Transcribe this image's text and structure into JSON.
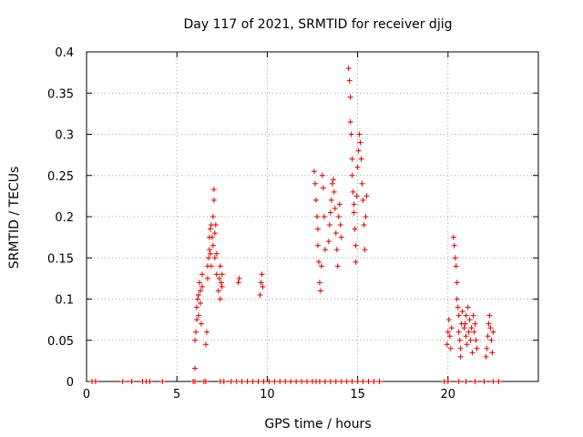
{
  "chart_data": {
    "type": "scatter",
    "title": "Day 117 of 2021, SRMTID for receiver djig",
    "xlabel": "GPS time / hours",
    "ylabel": "SRMTID / TECUs",
    "xlim": [
      0,
      25
    ],
    "ylim": [
      0,
      0.4
    ],
    "xticks": [
      0,
      5,
      10,
      15,
      20
    ],
    "xtick_labels": [
      "0",
      "5",
      "10",
      "15",
      "20"
    ],
    "yticks": [
      0,
      0.05,
      0.1,
      0.15,
      0.2,
      0.25,
      0.3,
      0.35,
      0.4
    ],
    "ytick_labels": [
      "0",
      "0.05",
      "0.1",
      "0.15",
      "0.2",
      "0.25",
      "0.3",
      "0.35",
      "0.4"
    ],
    "grid": true,
    "marker": "+",
    "color": "#dd0000",
    "series": [
      {
        "name": "SRMTID",
        "points": [
          [
            0.3,
            0
          ],
          [
            0.5,
            0
          ],
          [
            2.0,
            0
          ],
          [
            2.5,
            0
          ],
          [
            3.1,
            0
          ],
          [
            3.3,
            0
          ],
          [
            3.5,
            0
          ],
          [
            4.2,
            0
          ],
          [
            5.9,
            0
          ],
          [
            6.0,
            0
          ],
          [
            6.5,
            0
          ],
          [
            6.6,
            0
          ],
          [
            7.4,
            0
          ],
          [
            7.6,
            0
          ],
          [
            8.0,
            0
          ],
          [
            8.3,
            0
          ],
          [
            8.6,
            0
          ],
          [
            8.9,
            0
          ],
          [
            9.2,
            0
          ],
          [
            9.5,
            0
          ],
          [
            9.8,
            0
          ],
          [
            10.1,
            0
          ],
          [
            10.4,
            0
          ],
          [
            10.7,
            0
          ],
          [
            11.0,
            0
          ],
          [
            11.3,
            0
          ],
          [
            11.6,
            0
          ],
          [
            11.9,
            0
          ],
          [
            12.2,
            0
          ],
          [
            12.5,
            0
          ],
          [
            12.7,
            0
          ],
          [
            12.9,
            0
          ],
          [
            13.2,
            0
          ],
          [
            13.5,
            0
          ],
          [
            13.8,
            0
          ],
          [
            14.1,
            0
          ],
          [
            14.4,
            0
          ],
          [
            14.7,
            0
          ],
          [
            15.0,
            0
          ],
          [
            15.3,
            0
          ],
          [
            15.6,
            0
          ],
          [
            15.9,
            0
          ],
          [
            16.2,
            0
          ],
          [
            19.8,
            0
          ],
          [
            20.0,
            0
          ],
          [
            20.6,
            0
          ],
          [
            21.0,
            0
          ],
          [
            21.5,
            0
          ],
          [
            22.0,
            0
          ],
          [
            22.5,
            0
          ],
          [
            22.8,
            0
          ],
          [
            6.0,
            0.016
          ],
          [
            6.0,
            0.05
          ],
          [
            6.05,
            0.06
          ],
          [
            6.1,
            0.075
          ],
          [
            6.1,
            0.09
          ],
          [
            6.15,
            0.1
          ],
          [
            6.2,
            0.105
          ],
          [
            6.2,
            0.08
          ],
          [
            6.25,
            0.12
          ],
          [
            6.3,
            0.095
          ],
          [
            6.3,
            0.11
          ],
          [
            6.35,
            0.07
          ],
          [
            6.4,
            0.115
          ],
          [
            6.4,
            0.13
          ],
          [
            6.6,
            0.045
          ],
          [
            6.65,
            0.06
          ],
          [
            6.7,
            0.125
          ],
          [
            6.7,
            0.14
          ],
          [
            6.75,
            0.15
          ],
          [
            6.8,
            0.16
          ],
          [
            6.8,
            0.175
          ],
          [
            6.85,
            0.185
          ],
          [
            6.85,
            0.155
          ],
          [
            6.9,
            0.19
          ],
          [
            6.9,
            0.14
          ],
          [
            6.95,
            0.175
          ],
          [
            7.0,
            0.2
          ],
          [
            7.0,
            0.165
          ],
          [
            7.05,
            0.22
          ],
          [
            7.05,
            0.233
          ],
          [
            7.1,
            0.18
          ],
          [
            7.1,
            0.15
          ],
          [
            7.15,
            0.19
          ],
          [
            7.2,
            0.13
          ],
          [
            7.2,
            0.155
          ],
          [
            7.3,
            0.11
          ],
          [
            7.35,
            0.125
          ],
          [
            7.4,
            0.14
          ],
          [
            7.4,
            0.1
          ],
          [
            7.45,
            0.12
          ],
          [
            7.5,
            0.13
          ],
          [
            7.5,
            0.115
          ],
          [
            8.4,
            0.12
          ],
          [
            8.45,
            0.125
          ],
          [
            9.6,
            0.105
          ],
          [
            9.65,
            0.12
          ],
          [
            9.7,
            0.13
          ],
          [
            9.75,
            0.115
          ],
          [
            12.6,
            0.255
          ],
          [
            12.65,
            0.24
          ],
          [
            12.7,
            0.22
          ],
          [
            12.75,
            0.2
          ],
          [
            12.8,
            0.185
          ],
          [
            12.8,
            0.165
          ],
          [
            12.85,
            0.145
          ],
          [
            12.9,
            0.12
          ],
          [
            12.95,
            0.11
          ],
          [
            13.0,
            0.14
          ],
          [
            13.05,
            0.25
          ],
          [
            13.1,
            0.235
          ],
          [
            13.15,
            0.2
          ],
          [
            13.2,
            0.16
          ],
          [
            13.4,
            0.17
          ],
          [
            13.45,
            0.19
          ],
          [
            13.5,
            0.205
          ],
          [
            13.55,
            0.22
          ],
          [
            13.6,
            0.24
          ],
          [
            13.65,
            0.245
          ],
          [
            13.7,
            0.23
          ],
          [
            13.75,
            0.21
          ],
          [
            13.8,
            0.18
          ],
          [
            13.85,
            0.16
          ],
          [
            13.9,
            0.14
          ],
          [
            13.95,
            0.2
          ],
          [
            14.0,
            0.215
          ],
          [
            14.05,
            0.19
          ],
          [
            14.1,
            0.175
          ],
          [
            14.5,
            0.38
          ],
          [
            14.55,
            0.365
          ],
          [
            14.6,
            0.345
          ],
          [
            14.6,
            0.315
          ],
          [
            14.65,
            0.3
          ],
          [
            14.7,
            0.27
          ],
          [
            14.7,
            0.25
          ],
          [
            14.75,
            0.23
          ],
          [
            14.8,
            0.215
          ],
          [
            14.8,
            0.205
          ],
          [
            14.85,
            0.185
          ],
          [
            14.9,
            0.165
          ],
          [
            14.9,
            0.145
          ],
          [
            14.95,
            0.225
          ],
          [
            15.0,
            0.26
          ],
          [
            15.05,
            0.28
          ],
          [
            15.1,
            0.3
          ],
          [
            15.15,
            0.29
          ],
          [
            15.2,
            0.27
          ],
          [
            15.25,
            0.24
          ],
          [
            15.3,
            0.22
          ],
          [
            15.35,
            0.19
          ],
          [
            15.4,
            0.16
          ],
          [
            15.45,
            0.2
          ],
          [
            15.5,
            0.225
          ],
          [
            20.3,
            0.175
          ],
          [
            20.35,
            0.165
          ],
          [
            20.4,
            0.15
          ],
          [
            20.45,
            0.14
          ],
          [
            20.5,
            0.12
          ],
          [
            20.5,
            0.1
          ],
          [
            20.55,
            0.09
          ],
          [
            20.6,
            0.08
          ],
          [
            20.6,
            0.06
          ],
          [
            20.65,
            0.05
          ],
          [
            20.7,
            0.04
          ],
          [
            20.7,
            0.03
          ],
          [
            20.75,
            0.07
          ],
          [
            20.8,
            0.085
          ],
          [
            20.9,
            0.065
          ],
          [
            20.95,
            0.07
          ],
          [
            21.0,
            0.055
          ],
          [
            21.0,
            0.08
          ],
          [
            21.05,
            0.045
          ],
          [
            21.1,
            0.09
          ],
          [
            21.15,
            0.06
          ],
          [
            21.2,
            0.075
          ],
          [
            21.25,
            0.05
          ],
          [
            21.3,
            0.065
          ],
          [
            21.35,
            0.035
          ],
          [
            21.4,
            0.08
          ],
          [
            21.45,
            0.06
          ],
          [
            21.5,
            0.07
          ],
          [
            21.55,
            0.05
          ],
          [
            21.6,
            0.04
          ],
          [
            22.1,
            0.03
          ],
          [
            22.15,
            0.04
          ],
          [
            22.2,
            0.055
          ],
          [
            22.25,
            0.07
          ],
          [
            22.3,
            0.08
          ],
          [
            22.35,
            0.065
          ],
          [
            22.4,
            0.05
          ],
          [
            22.45,
            0.035
          ],
          [
            22.5,
            0.06
          ],
          [
            19.95,
            0.045
          ],
          [
            20.0,
            0.06
          ],
          [
            20.05,
            0.075
          ],
          [
            20.1,
            0.055
          ],
          [
            20.15,
            0.04
          ],
          [
            20.2,
            0.065
          ]
        ]
      }
    ]
  }
}
